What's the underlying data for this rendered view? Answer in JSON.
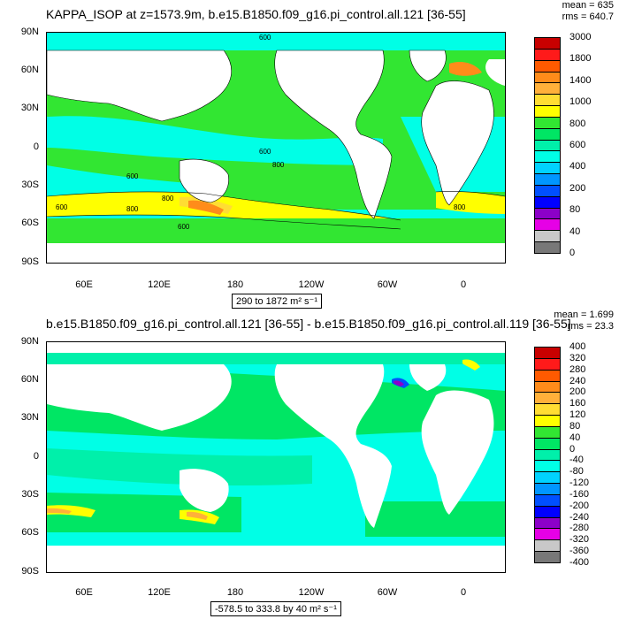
{
  "panel1": {
    "title": "KAPPA_ISOP at z=1573.9m, b.e15.B1850.f09_g16.pi_control.all.121 [36-55]",
    "stats": [
      "mean = 635",
      "rms = 640.7"
    ],
    "range_label": "290 to 1872 m² s⁻¹",
    "lat_labels": [
      "90N",
      "60N",
      "30N",
      "0",
      "30S",
      "60S",
      "90S"
    ],
    "lon_labels": [
      "60E",
      "120E",
      "180",
      "120W",
      "60W",
      "0"
    ],
    "contour_labels": [
      "600",
      "800",
      "600",
      "600",
      "800",
      "600",
      "800",
      "800",
      "600"
    ],
    "colorbar": {
      "levels": [
        "3000",
        "1800",
        "1400",
        "1000",
        "800",
        "600",
        "400",
        "200",
        "80",
        "40",
        "0"
      ],
      "colors": [
        "#c80000",
        "#ff1a1a",
        "#ff5a00",
        "#ff8c1a",
        "#ffb03a",
        "#ffdd33",
        "#ffff00",
        "#32e632",
        "#00e664",
        "#00f0aa",
        "#00ffe6",
        "#00d2ff",
        "#0096ff",
        "#0050ff",
        "#0000ff",
        "#8c00c8",
        "#e600e6",
        "#c8c8c8",
        "#787878"
      ]
    }
  },
  "panel2": {
    "title": "b.e15.B1850.f09_g16.pi_control.all.121 [36-55] - b.e15.B1850.f09_g16.pi_control.all.119 [36-55]",
    "stats": [
      "mean = 1.699",
      "rms = 23.3"
    ],
    "range_label": "-578.5 to 333.8 by 40 m² s⁻¹",
    "lat_labels": [
      "90N",
      "60N",
      "30N",
      "0",
      "30S",
      "60S",
      "90S"
    ],
    "lon_labels": [
      "60E",
      "120E",
      "180",
      "120W",
      "60W",
      "0"
    ],
    "colorbar": {
      "levels": [
        "400",
        "320",
        "280",
        "240",
        "200",
        "160",
        "120",
        "80",
        "40",
        "0",
        "-40",
        "-80",
        "-120",
        "-160",
        "-200",
        "-240",
        "-280",
        "-320",
        "-360",
        "-400"
      ],
      "colors": [
        "#c80000",
        "#ff1a1a",
        "#ff5a00",
        "#ff8c1a",
        "#ffb03a",
        "#ffdd33",
        "#ffff00",
        "#32e632",
        "#00e664",
        "#00f0aa",
        "#00ffe6",
        "#00d2ff",
        "#0096ff",
        "#0050ff",
        "#0000ff",
        "#8c00c8",
        "#e600e6",
        "#c8c8c8",
        "#787878"
      ]
    }
  }
}
